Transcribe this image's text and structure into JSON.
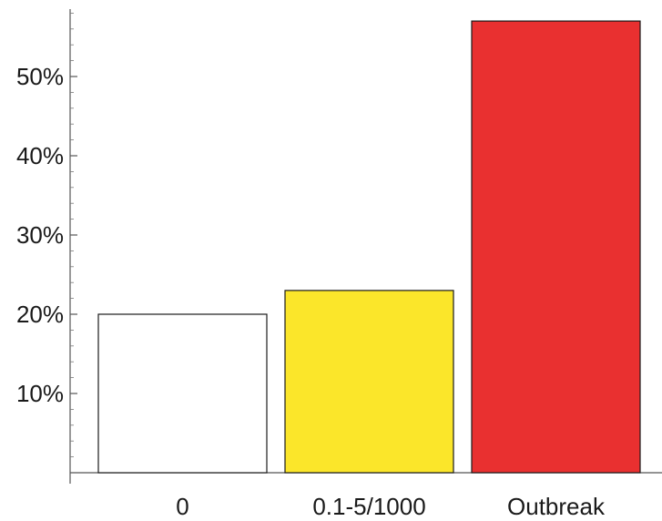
{
  "chart_data": {
    "type": "bar",
    "categories": [
      "0",
      "0.1-5/1000",
      "Outbreak"
    ],
    "values": [
      20,
      23,
      57
    ],
    "colors": [
      "#ffffff",
      "#fbe62a",
      "#e93030"
    ],
    "title": "",
    "xlabel": "",
    "ylabel": "",
    "ylim": [
      0,
      58
    ],
    "y_tick_values": [
      10,
      20,
      30,
      40,
      50
    ],
    "y_tick_labels": [
      "10%",
      "20%",
      "30%",
      "40%",
      "50%"
    ],
    "y_minor_step": 2,
    "grid": false,
    "legend": "none"
  }
}
